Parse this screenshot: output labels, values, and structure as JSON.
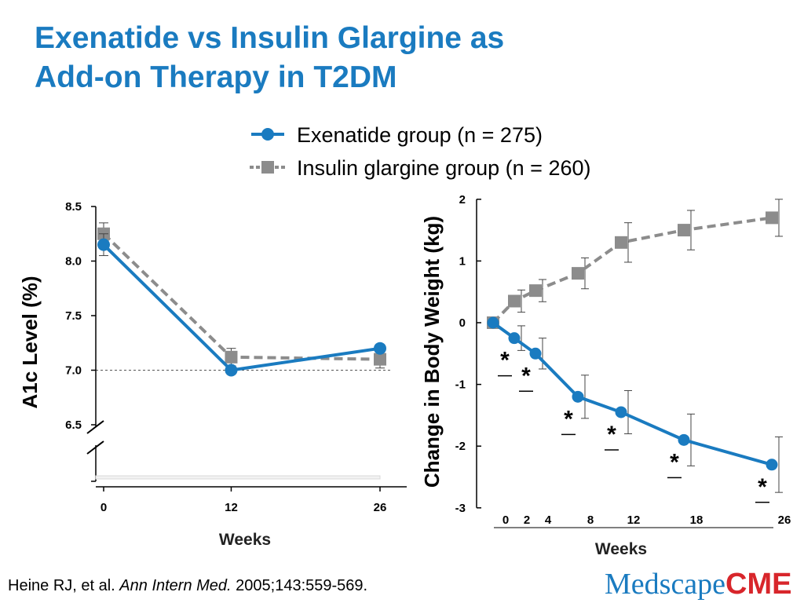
{
  "title": {
    "line1": "Exenatide vs Insulin Glargine as",
    "line2": "Add-on Therapy in T2DM"
  },
  "legend": [
    {
      "label": "Exenatide group (n = 275)",
      "color": "#1a7bc0",
      "marker": "circle",
      "line": "solid"
    },
    {
      "label": "Insulin glargine group (n = 260)",
      "color": "#8c8c8c",
      "marker": "square",
      "line": "dashed"
    }
  ],
  "chart_data": [
    {
      "type": "line",
      "ylabel": "A1c Level (%)",
      "xlabel": "Weeks",
      "x": [
        0,
        12,
        26
      ],
      "x_ticks": [
        "0",
        "12",
        "26"
      ],
      "y_ticks": [
        "8.5",
        "8.0",
        "7.5",
        "7.0",
        "6.5"
      ],
      "ylim": [
        6.5,
        8.5
      ],
      "axis_break": true,
      "reference_line": 7.0,
      "series": [
        {
          "name": "Exenatide group (n = 275)",
          "color": "#1a7bc0",
          "values": [
            8.15,
            7.0,
            7.2
          ],
          "err": [
            0.1,
            0.0,
            0.0
          ]
        },
        {
          "name": "Insulin glargine group (n = 260)",
          "color": "#8c8c8c",
          "values": [
            8.25,
            7.12,
            7.1
          ],
          "err": [
            0.1,
            0.08,
            0.08
          ]
        }
      ]
    },
    {
      "type": "line",
      "ylabel": "Change in Body Weight (kg)",
      "xlabel": "Weeks",
      "x": [
        0,
        2,
        4,
        8,
        12,
        18,
        26
      ],
      "x_ticks": [
        "0",
        "2",
        "4",
        "8",
        "12",
        "18",
        "26"
      ],
      "y_ticks": [
        "2",
        "1",
        "0",
        "-1",
        "-2",
        "-3"
      ],
      "ylim": [
        -3,
        2
      ],
      "significance_marker": "*",
      "significant_at": [
        2,
        4,
        8,
        12,
        18,
        26
      ],
      "series": [
        {
          "name": "Exenatide group (n = 275)",
          "color": "#1a7bc0",
          "values": [
            0,
            -0.25,
            -0.5,
            -1.2,
            -1.45,
            -1.9,
            -2.3
          ],
          "err": [
            0,
            0.2,
            0.25,
            0.35,
            0.35,
            0.42,
            0.45
          ]
        },
        {
          "name": "Insulin glargine group (n = 260)",
          "color": "#8c8c8c",
          "values": [
            0,
            0.35,
            0.52,
            0.8,
            1.3,
            1.5,
            1.7
          ],
          "err": [
            0,
            0.18,
            0.18,
            0.25,
            0.32,
            0.32,
            0.3
          ]
        }
      ]
    }
  ],
  "citation": {
    "authors": "Heine RJ, et al.",
    "journal": "Ann Intern Med.",
    "details": "2005;143:559-569."
  },
  "logo": {
    "medscape": "Medscape",
    "cme": "CME"
  }
}
